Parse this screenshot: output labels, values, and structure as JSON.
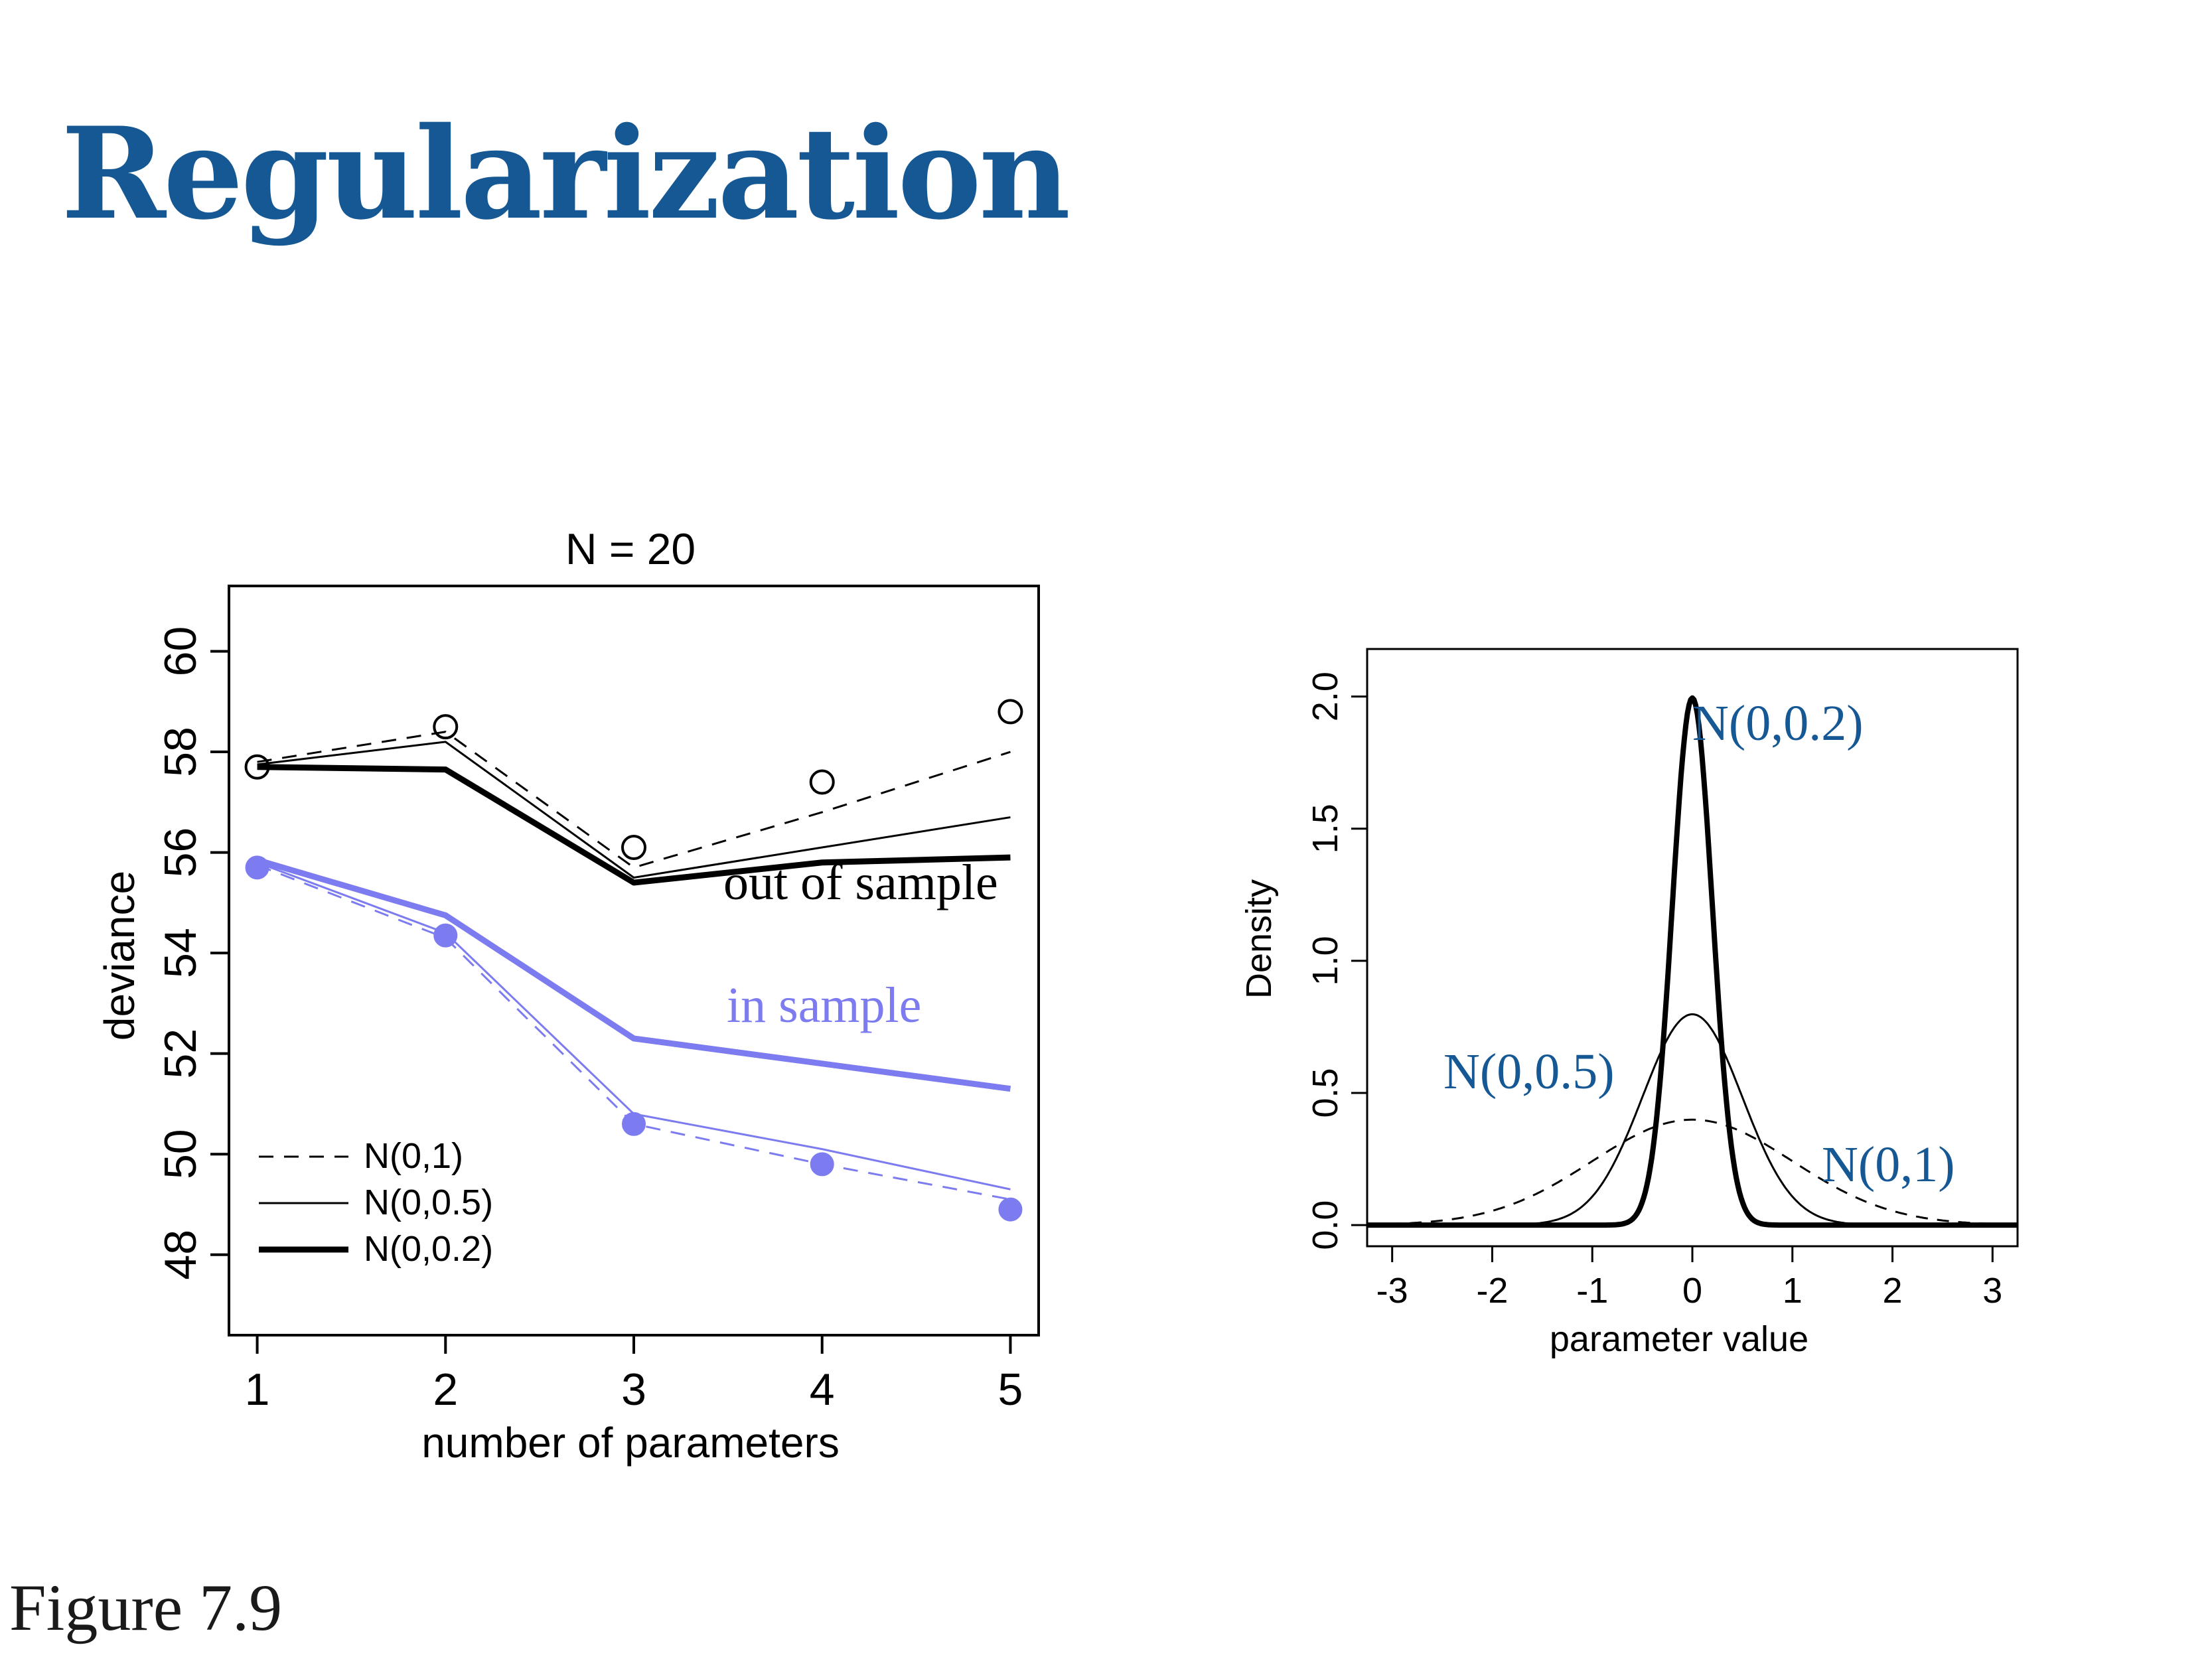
{
  "slide": {
    "title": "Regularization",
    "caption": "Figure 7.9"
  },
  "colors": {
    "title": "#155894",
    "in_sample": "#7C7CF0",
    "out_sample": "#000000",
    "annotation_blue": "#155894"
  },
  "chart_data": [
    {
      "type": "line",
      "title": "N = 20",
      "xlabel": "number of parameters",
      "ylabel": "deviance",
      "x": [
        1,
        2,
        3,
        4,
        5
      ],
      "xticks": [
        "1",
        "2",
        "3",
        "4",
        "5"
      ],
      "yticks": [
        "48",
        "50",
        "52",
        "54",
        "56",
        "58",
        "60"
      ],
      "xlim": [
        0.85,
        5.15
      ],
      "ylim": [
        46.4,
        61.3
      ],
      "grid": false,
      "legend": {
        "position": "bottom-left",
        "entries": [
          {
            "label": "N(0,1)",
            "style": "dashed"
          },
          {
            "label": "N(0,0.5)",
            "style": "thin"
          },
          {
            "label": "N(0,0.2)",
            "style": "thick"
          }
        ]
      },
      "annotations": {
        "out_sample": "out of sample",
        "in_sample": "in sample"
      },
      "points": {
        "out_sample_flat_prior": [
          57.7,
          58.5,
          56.1,
          57.4,
          58.8
        ],
        "in_sample_flat_prior": [
          55.7,
          54.35,
          50.6,
          49.8,
          48.9
        ]
      },
      "series": [
        {
          "name": "N(0,1)",
          "group": "out_sample",
          "style": "dashed",
          "values": [
            57.8,
            58.4,
            55.7,
            56.8,
            58.0
          ]
        },
        {
          "name": "N(0,0.5)",
          "group": "out_sample",
          "style": "thin",
          "values": [
            57.75,
            58.2,
            55.5,
            56.1,
            56.7
          ]
        },
        {
          "name": "N(0,0.2)",
          "group": "out_sample",
          "style": "thick",
          "values": [
            57.7,
            57.65,
            55.4,
            55.8,
            55.9
          ]
        },
        {
          "name": "N(0,1)",
          "group": "in_sample",
          "style": "dashed",
          "values": [
            55.75,
            54.3,
            50.6,
            49.8,
            49.1
          ]
        },
        {
          "name": "N(0,0.5)",
          "group": "in_sample",
          "style": "thin",
          "values": [
            55.8,
            54.4,
            50.8,
            50.1,
            49.3
          ]
        },
        {
          "name": "N(0,0.2)",
          "group": "in_sample",
          "style": "thick",
          "values": [
            55.85,
            54.75,
            52.3,
            51.8,
            51.3
          ]
        }
      ]
    },
    {
      "type": "line",
      "xlabel": "parameter value",
      "ylabel": "Density",
      "xticks": [
        "-3",
        "-2",
        "-1",
        "0",
        "1",
        "2",
        "3"
      ],
      "yticks": [
        "0.0",
        "0.5",
        "1.0",
        "1.5",
        "2.0"
      ],
      "xlim": [
        -3.25,
        3.25
      ],
      "ylim": [
        -0.08,
        2.18
      ],
      "grid": false,
      "annotations": {
        "narrow": "N(0,0.2)",
        "medium": "N(0,0.5)",
        "wide": "N(0,1)"
      },
      "series": [
        {
          "name": "N(0,0.2)",
          "sd": 0.2,
          "mean": 0,
          "peak": 1.995,
          "style": "thick"
        },
        {
          "name": "N(0,0.5)",
          "sd": 0.5,
          "mean": 0,
          "peak": 0.798,
          "style": "thin"
        },
        {
          "name": "N(0,1)",
          "sd": 1.0,
          "mean": 0,
          "peak": 0.399,
          "style": "dashed"
        }
      ]
    }
  ]
}
